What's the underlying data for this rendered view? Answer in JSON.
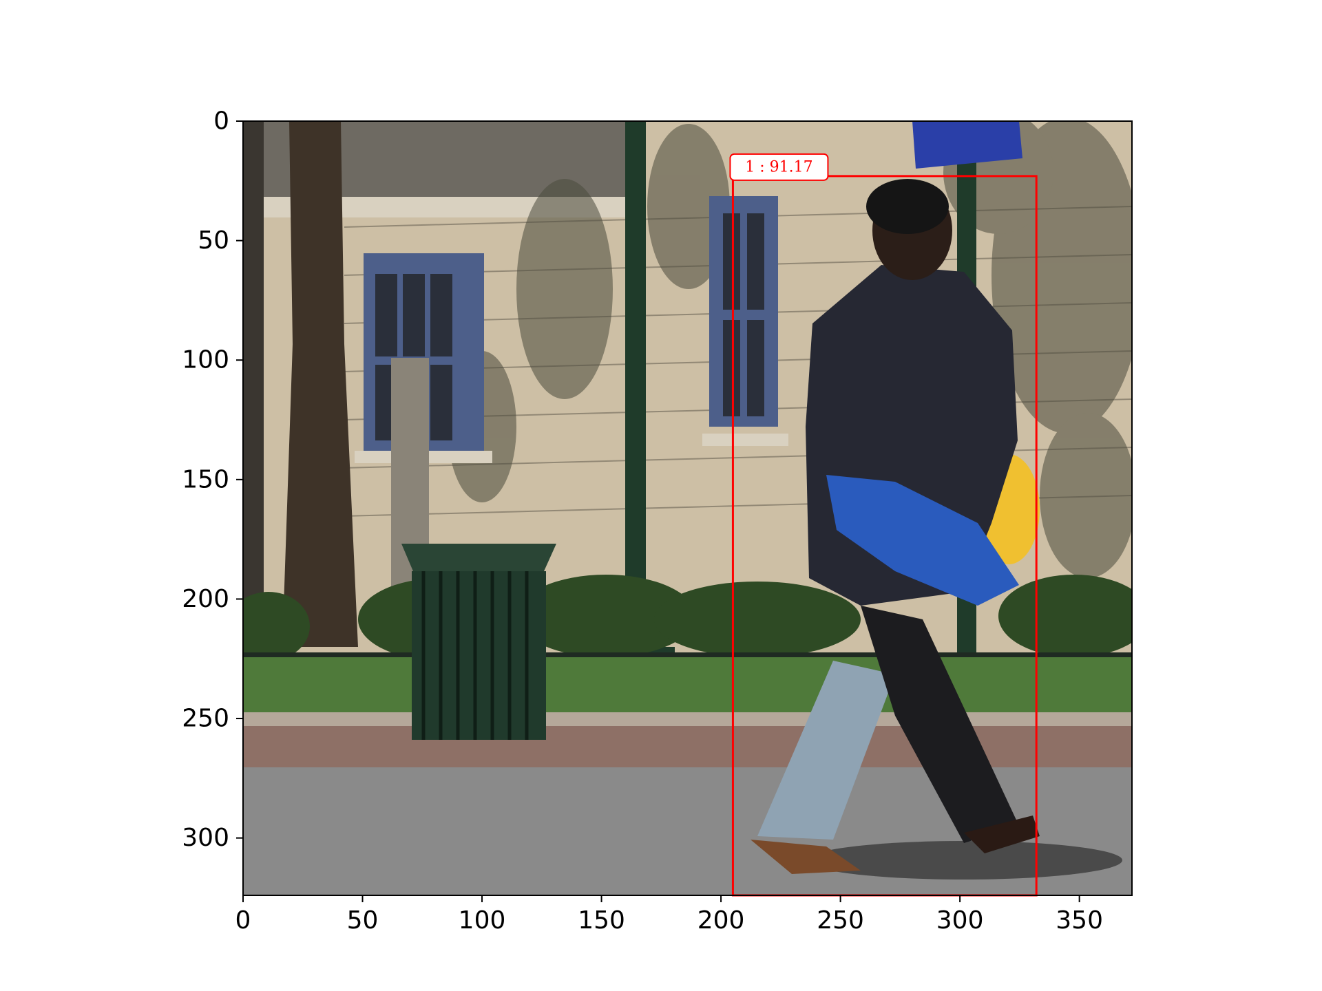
{
  "image": {
    "description_icon": "street-photo-icon",
    "extent_x": [
      0,
      372
    ],
    "extent_y": [
      324,
      0
    ]
  },
  "axes": {
    "x_ticks": [
      0,
      50,
      100,
      150,
      200,
      250,
      300,
      350
    ],
    "y_ticks": [
      0,
      50,
      100,
      150,
      200,
      250,
      300
    ]
  },
  "detection": {
    "x_min": 205,
    "y_min": 23,
    "x_max": 332,
    "y_max": 324,
    "label": "1 : 91.17",
    "color": "#ff0000"
  },
  "colors": {
    "frame": "#000000",
    "wall": "#cdbfa5",
    "shadow": "#4b4a3c",
    "sidewalk": "#8e7066",
    "road": "#8a8a8a",
    "grass": "#4f7a3a",
    "bin": "#203a2c",
    "tree": "#3e3328",
    "jacket": "#262833",
    "jeans": "#8fa3b3",
    "bag": "#2a5bbd",
    "window": "#4d5f8a"
  }
}
